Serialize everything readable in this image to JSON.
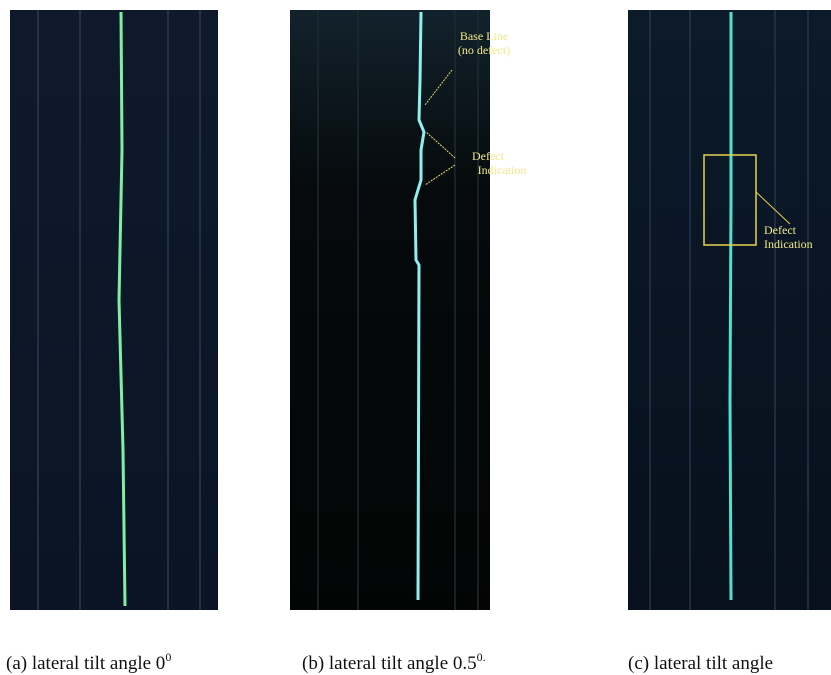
{
  "panels": [
    {
      "caption": "(a) lateral tilt angle 0",
      "superscript": "0"
    },
    {
      "caption": "(b) lateral tilt angle 0.5",
      "superscript": "0.",
      "annotations": [
        "Base Line",
        "(no defect)",
        "Defect",
        "Indication"
      ]
    },
    {
      "caption": "(c) lateral tilt angle",
      "annotations": [
        "Defect",
        "Indication"
      ]
    }
  ]
}
